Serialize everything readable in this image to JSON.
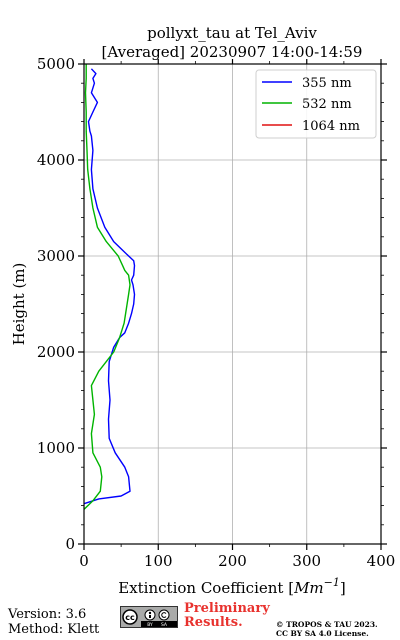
{
  "chart_data": {
    "type": "line",
    "title_line1": "pollyxt_tau at Tel_Aviv",
    "title_line2": "[Averaged] 20230907 14:00-14:59",
    "xlabel": "Extinction Coefficient [Mm^-1]",
    "xlabel_base": "Extinction Coefficient [",
    "xlabel_unit": "Mm",
    "xlabel_exp": "−1",
    "xlabel_end": "]",
    "ylabel": "Height (m)",
    "xlim": [
      0,
      400
    ],
    "ylim": [
      0,
      5000
    ],
    "xticks": [
      0,
      100,
      200,
      300,
      400
    ],
    "yticks": [
      0,
      1000,
      2000,
      3000,
      4000,
      5000
    ],
    "grid": true,
    "legend_position": "top-right",
    "series": [
      {
        "name": "355 nm",
        "color": "#0000ff",
        "x": [
          0,
          20,
          50,
          62,
          60,
          55,
          42,
          34,
          33,
          35,
          33,
          34,
          40,
          48,
          55,
          60,
          64,
          67,
          68,
          66,
          64,
          67,
          68,
          67,
          60,
          40,
          28,
          18,
          12,
          10,
          12,
          10,
          8,
          6,
          12,
          18,
          10,
          14,
          12,
          16,
          10
        ],
        "y": [
          420,
          470,
          500,
          550,
          700,
          800,
          950,
          1100,
          1300,
          1500,
          1700,
          1900,
          2050,
          2150,
          2200,
          2300,
          2400,
          2500,
          2600,
          2700,
          2750,
          2800,
          2900,
          2950,
          3000,
          3150,
          3300,
          3500,
          3700,
          3900,
          4100,
          4250,
          4300,
          4400,
          4500,
          4600,
          4700,
          4800,
          4850,
          4900,
          4950
        ]
      },
      {
        "name": "532 nm",
        "color": "#00b400",
        "x": [
          0,
          12,
          22,
          24,
          22,
          12,
          10,
          14,
          12,
          10,
          20,
          30,
          40,
          48,
          54,
          56,
          58,
          60,
          62,
          60,
          55,
          52,
          46,
          30,
          18,
          12,
          8,
          5,
          4,
          3,
          3,
          2,
          3,
          3
        ],
        "y": [
          360,
          450,
          550,
          700,
          800,
          950,
          1150,
          1350,
          1500,
          1650,
          1800,
          1900,
          2000,
          2150,
          2300,
          2400,
          2500,
          2600,
          2700,
          2800,
          2850,
          2900,
          3000,
          3150,
          3300,
          3500,
          3700,
          3900,
          4100,
          4300,
          4500,
          4700,
          4850,
          5000
        ]
      },
      {
        "name": "1064 nm",
        "color": "#e01010",
        "x": [],
        "y": []
      }
    ]
  },
  "footer": {
    "version": "Version: 3.6",
    "method": "Method: Klett",
    "preliminary_line1": "Preliminary",
    "preliminary_line2": "Results.",
    "copyright_line1": "© TROPOS & TAU 2023.",
    "copyright_line2": "CC BY SA 4.0 License.",
    "badge_icons": [
      "cc-icon",
      "by-icon",
      "sa-icon"
    ],
    "badge_labels": [
      "BY",
      "SA"
    ]
  }
}
